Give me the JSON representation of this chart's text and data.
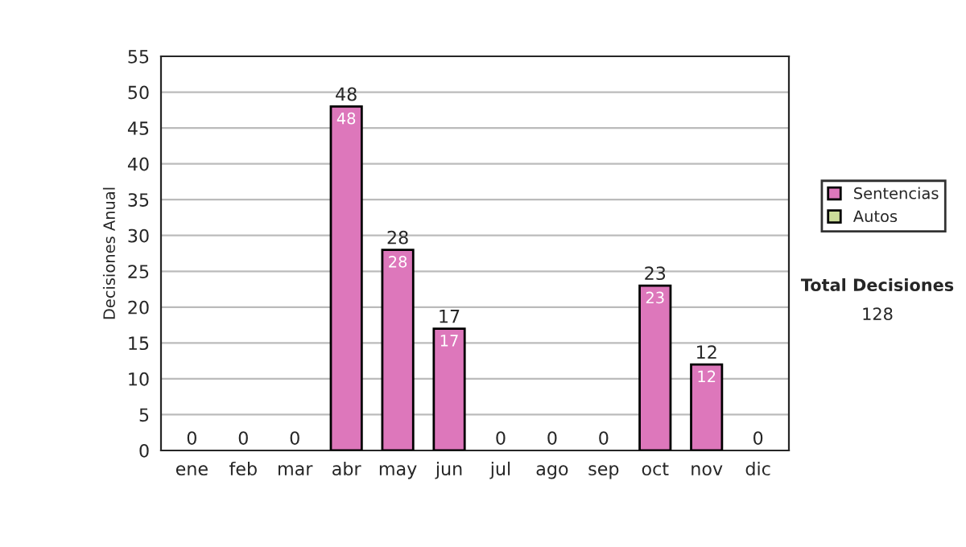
{
  "chart_data": {
    "type": "bar",
    "stacked": true,
    "ylabel": "Decisiones Anual",
    "categories": [
      "ene",
      "feb",
      "mar",
      "abr",
      "may",
      "jun",
      "jul",
      "ago",
      "sep",
      "oct",
      "nov",
      "dic"
    ],
    "series": [
      {
        "name": "Sentencias",
        "color": "#dd77bb",
        "values": [
          0,
          0,
          0,
          48,
          28,
          17,
          0,
          0,
          0,
          23,
          12,
          0
        ],
        "value_labels": [
          null,
          null,
          null,
          "48",
          "28",
          "17",
          null,
          null,
          null,
          "23",
          "12",
          null
        ]
      },
      {
        "name": "Autos",
        "color": "#ccdd99",
        "values": [
          0,
          0,
          0,
          0,
          0,
          0,
          0,
          0,
          0,
          0,
          0,
          0
        ]
      }
    ],
    "totals": [
      "0",
      "0",
      "0",
      "48",
      "28",
      "17",
      "0",
      "0",
      "0",
      "23",
      "12",
      "0"
    ],
    "ylim": [
      0,
      55
    ],
    "yticks": [
      0,
      5,
      10,
      15,
      20,
      25,
      30,
      35,
      40,
      45,
      50,
      55
    ],
    "grid": "y",
    "legend": "right",
    "annotations": [
      "Total Decisiones",
      "128"
    ]
  }
}
